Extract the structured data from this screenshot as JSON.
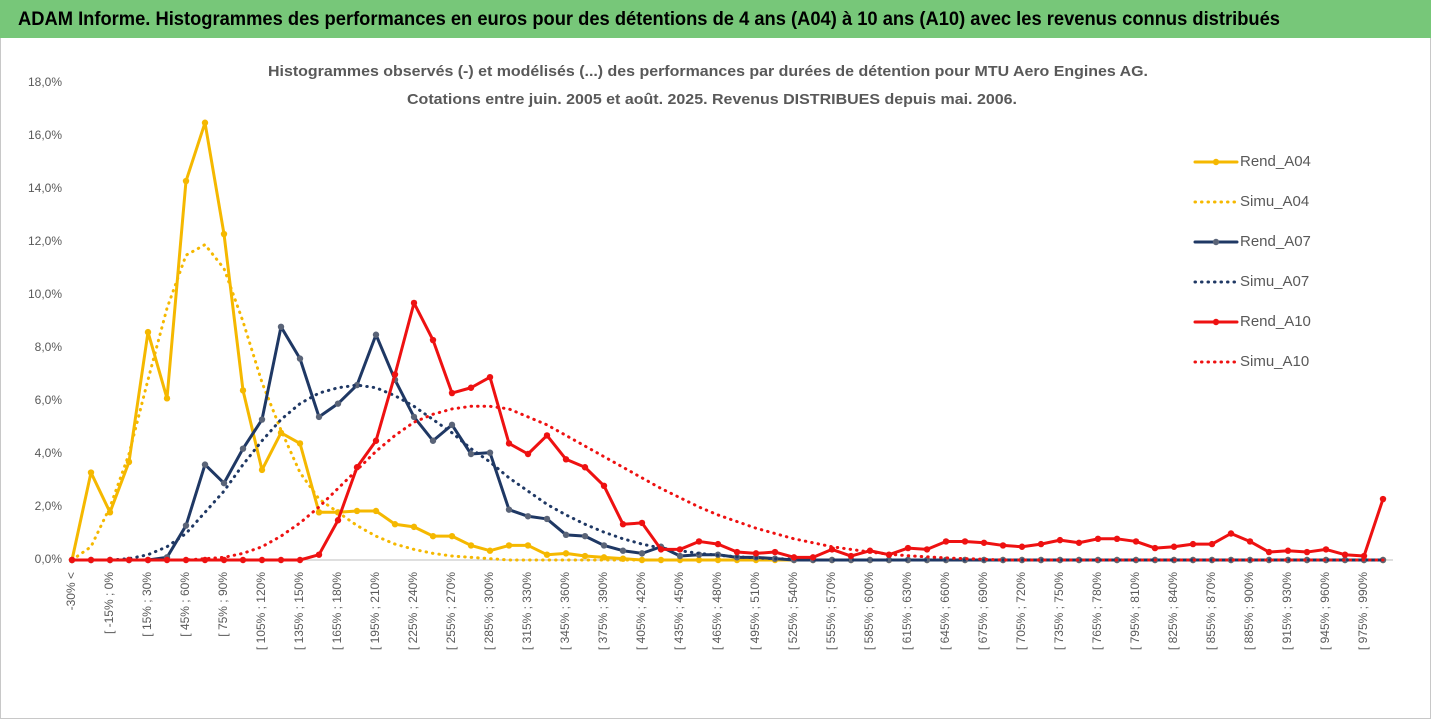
{
  "header": {
    "title": "ADAM Informe. Histogrammes des performances en euros pour des détentions de 4 ans (A04) à 10 ans (A10) avec les revenus connus distribués"
  },
  "chart_data": {
    "type": "line",
    "title": "Histogrammes observés (-) et modélisés (...) des performances par durées de détention pour MTU Aero Engines AG.",
    "subtitle": "Cotations entre juin. 2005 et août. 2025. Revenus DISTRIBUES depuis mai. 2006.",
    "categories": [
      "-30% <",
      null,
      "[ -15% ; 0%",
      null,
      "[ 15% ; 30%",
      null,
      "[ 45% ; 60%",
      null,
      "[ 75% ; 90%",
      null,
      "[ 105% ; 120%",
      null,
      "[ 135% ; 150%",
      null,
      "[ 165% ; 180%",
      null,
      "[ 195% ; 210%",
      null,
      "[ 225% ; 240%",
      null,
      "[ 255% ; 270%",
      null,
      "[ 285% ; 300%",
      null,
      "[ 315% ; 330%",
      null,
      "[ 345% ; 360%",
      null,
      "[ 375% ; 390%",
      null,
      "[ 405% ; 420%",
      null,
      "[ 435% ; 450%",
      null,
      "[ 465% ; 480%",
      null,
      "[ 495% ; 510%",
      null,
      "[ 525% ; 540%",
      null,
      "[ 555% ; 570%",
      null,
      "[ 585% ; 600%",
      null,
      "[ 615% ; 630%",
      null,
      "[ 645% ; 660%",
      null,
      "[ 675% ; 690%",
      null,
      "[ 705% ; 720%",
      null,
      "[ 735% ; 750%",
      null,
      "[ 765% ; 780%",
      null,
      "[ 795% ; 810%",
      null,
      "[ 825% ; 840%",
      null,
      "[ 855% ; 870%",
      null,
      "[ 885% ; 900%",
      null,
      "[ 915% ; 930%",
      null,
      "[ 945% ; 960%",
      null,
      "[ 975% ; 990%",
      null
    ],
    "series": [
      {
        "name": "Rend_A04",
        "color": "#f5b800",
        "style": "solid",
        "marker": true,
        "values": [
          0,
          3.3,
          1.8,
          3.7,
          8.6,
          6.1,
          14.3,
          16.5,
          12.3,
          6.4,
          3.4,
          4.8,
          4.4,
          1.8,
          1.8,
          1.85,
          1.85,
          1.35,
          1.25,
          0.9,
          0.9,
          0.55,
          0.35,
          0.55,
          0.55,
          0.2,
          0.25,
          0.15,
          0.1,
          0.05,
          0,
          0,
          0,
          0,
          0,
          0,
          0,
          0,
          0,
          0,
          0,
          0,
          0,
          0,
          0,
          0,
          0,
          0,
          0,
          0,
          0,
          0,
          0,
          0,
          0,
          0,
          0,
          0,
          0,
          0,
          0,
          0,
          0,
          0,
          0,
          0,
          0,
          0,
          0,
          0
        ]
      },
      {
        "name": "Simu_A04",
        "color": "#f5b800",
        "style": "dotted",
        "marker": false,
        "values": [
          0,
          0.5,
          2.0,
          4.0,
          6.8,
          9.5,
          11.5,
          11.9,
          11.0,
          9.0,
          6.7,
          4.9,
          3.3,
          2.3,
          1.8,
          1.3,
          0.9,
          0.6,
          0.4,
          0.25,
          0.15,
          0.1,
          0.05,
          0,
          0,
          0,
          0,
          0,
          0,
          0,
          0,
          0,
          0,
          0,
          0,
          0,
          0,
          0,
          0,
          0,
          0,
          0,
          0,
          0,
          0,
          0,
          0,
          0,
          0,
          0,
          0,
          0,
          0,
          0,
          0,
          0,
          0,
          0,
          0,
          0,
          0,
          0,
          0,
          0,
          0,
          0,
          0,
          0,
          0,
          0
        ]
      },
      {
        "name": "Rend_A07",
        "color": "#1f3864",
        "style": "solid",
        "marker": true,
        "marker_color": "#5a6478",
        "values": [
          0,
          0,
          0,
          0,
          0,
          0.1,
          1.3,
          3.6,
          2.9,
          4.2,
          5.3,
          8.8,
          7.6,
          5.4,
          5.9,
          6.6,
          8.5,
          6.8,
          5.4,
          4.5,
          5.1,
          4.0,
          4.05,
          1.9,
          1.65,
          1.55,
          0.95,
          0.9,
          0.55,
          0.35,
          0.25,
          0.5,
          0.15,
          0.2,
          0.2,
          0.1,
          0.1,
          0.05,
          0,
          0,
          0,
          0,
          0,
          0,
          0,
          0,
          0,
          0,
          0,
          0,
          0,
          0,
          0,
          0,
          0,
          0,
          0,
          0,
          0,
          0,
          0,
          0,
          0,
          0,
          0,
          0,
          0,
          0,
          0,
          0
        ]
      },
      {
        "name": "Simu_A07",
        "color": "#1f3864",
        "style": "dotted",
        "marker": false,
        "values": [
          0,
          0,
          0,
          0.05,
          0.2,
          0.5,
          1.0,
          1.8,
          2.6,
          3.6,
          4.5,
          5.3,
          5.9,
          6.3,
          6.5,
          6.6,
          6.5,
          6.2,
          5.8,
          5.3,
          4.8,
          4.2,
          3.7,
          3.1,
          2.6,
          2.1,
          1.7,
          1.35,
          1.05,
          0.8,
          0.6,
          0.45,
          0.35,
          0.25,
          0.18,
          0.12,
          0.08,
          0.05,
          0.03,
          0,
          0,
          0,
          0,
          0,
          0,
          0,
          0,
          0,
          0,
          0,
          0,
          0,
          0,
          0,
          0,
          0,
          0,
          0,
          0,
          0,
          0,
          0,
          0,
          0,
          0,
          0,
          0,
          0,
          0,
          0
        ]
      },
      {
        "name": "Rend_A10",
        "color": "#ee1111",
        "style": "solid",
        "marker": true,
        "values": [
          0,
          0,
          0,
          0,
          0,
          0,
          0,
          0,
          0,
          0,
          0,
          0,
          0,
          0.2,
          1.5,
          3.5,
          4.5,
          7.0,
          9.7,
          8.3,
          6.3,
          6.5,
          6.9,
          4.4,
          4.0,
          4.7,
          3.8,
          3.5,
          2.8,
          1.35,
          1.4,
          0.4,
          0.4,
          0.7,
          0.6,
          0.3,
          0.25,
          0.3,
          0.1,
          0.1,
          0.4,
          0.15,
          0.35,
          0.2,
          0.45,
          0.4,
          0.7,
          0.7,
          0.65,
          0.55,
          0.5,
          0.6,
          0.75,
          0.65,
          0.8,
          0.8,
          0.7,
          0.45,
          0.5,
          0.6,
          0.6,
          1.0,
          0.7,
          0.3,
          0.35,
          0.3,
          0.4,
          0.2,
          0.15,
          2.3
        ]
      },
      {
        "name": "Simu_A10",
        "color": "#ee1111",
        "style": "dotted",
        "marker": false,
        "values": [
          0,
          0,
          0,
          0,
          0,
          0,
          0,
          0.05,
          0.1,
          0.25,
          0.5,
          0.9,
          1.4,
          2.0,
          2.7,
          3.4,
          4.1,
          4.7,
          5.2,
          5.5,
          5.7,
          5.8,
          5.8,
          5.7,
          5.4,
          5.1,
          4.7,
          4.3,
          3.9,
          3.5,
          3.1,
          2.7,
          2.35,
          2.0,
          1.7,
          1.45,
          1.2,
          1.0,
          0.8,
          0.65,
          0.5,
          0.4,
          0.3,
          0.22,
          0.16,
          0.12,
          0.08,
          0.05,
          0.03,
          0,
          0,
          0,
          0,
          0,
          0,
          0,
          0,
          0,
          0,
          0,
          0,
          0,
          0,
          0,
          0,
          0,
          0,
          0,
          0,
          0
        ]
      }
    ],
    "ylim": [
      0,
      18
    ],
    "yticks": [
      {
        "value": 0,
        "label": "0,0%"
      },
      {
        "value": 2,
        "label": "2,0%"
      },
      {
        "value": 4,
        "label": "4,0%"
      },
      {
        "value": 6,
        "label": "6,0%"
      },
      {
        "value": 8,
        "label": "8,0%"
      },
      {
        "value": 10,
        "label": "10,0%"
      },
      {
        "value": 12,
        "label": "12,0%"
      },
      {
        "value": 14,
        "label": "14,0%"
      },
      {
        "value": 16,
        "label": "16,0%"
      },
      {
        "value": 18,
        "label": "18,0%"
      }
    ],
    "grid": false,
    "legend": "right"
  }
}
